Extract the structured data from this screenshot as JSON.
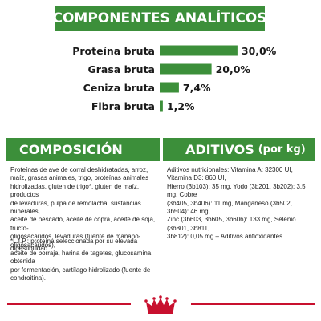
{
  "colors": {
    "accent_green": "#3c8f3a",
    "brand_red": "#c8102e",
    "text": "#1a1a1a"
  },
  "analiticos": {
    "title": "COMPONENTES ANALÍTICOS"
  },
  "chart_data": {
    "type": "bar",
    "orientation": "horizontal",
    "categories": [
      "Proteína bruta",
      "Grasa bruta",
      "Ceniza bruta",
      "Fibra bruta"
    ],
    "values": [
      30.0,
      20.0,
      7.4,
      1.2
    ],
    "value_labels": [
      "30,0%",
      "20,0%",
      "7,4%",
      "1,2%"
    ],
    "unit": "%",
    "bar_color": "#3c8f3a",
    "title": "COMPONENTES ANALÍTICOS",
    "xlabel": "",
    "ylabel": "",
    "grid": false
  },
  "composicion": {
    "title": "COMPOSICIÓN",
    "lines": [
      "Proteínas de ave de corral deshidratadas, arroz,",
      "maíz, grasas animales, trigo, proteínas animales",
      "hidrolizadas, gluten de trigo*, gluten de maíz, productos",
      "de levaduras, pulpa de remolacha, sustancias minerales,",
      "aceite de pescado, aceite de copra, aceite de soja, fructo-",
      "oligosacáridos, levaduras (fuente de manano-oligosacáridos),",
      "aceite de borraja, harina de tagetes, glucosamina obtenida",
      "por fermentación, cartílago hidrolizado (fuente de",
      "condroitina)."
    ],
    "note": "*L.I.P.: proteína seleccionada por su elevada digestibilidad."
  },
  "aditivos": {
    "title": "ADITIVOS",
    "unit": "(por kg)",
    "lines": [
      "Aditivos nutricionales: Vitamina A: 32300 UI, Vitamina D3: 860 UI,",
      "Hierro (3b103): 35 mg, Yodo (3b201, 3b202): 3,5 mg, Cobre",
      "(3b405, 3b406): 11 mg, Manganeso (3b502, 3b504): 46 mg,",
      "Zinc (3b603, 3b605, 3b606): 133 mg, Selenio (3b801, 3b811,",
      "3b812): 0,05 mg – Aditivos antioxidantes."
    ]
  }
}
